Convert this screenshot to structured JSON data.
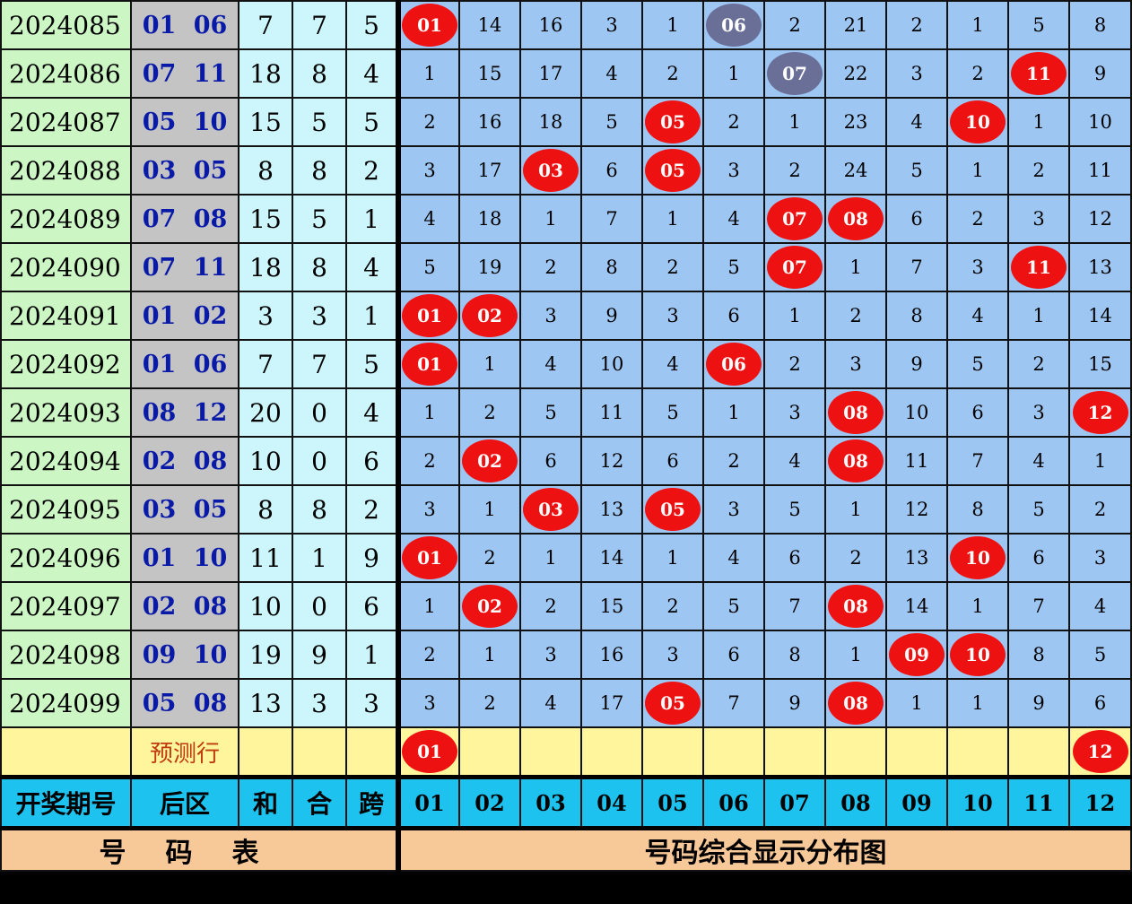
{
  "colors": {
    "hit": "#ee1111",
    "repeat": "#6a6f98",
    "period_bg": "#ccf7c4",
    "back_bg": "#c4c4c4",
    "stat_bg": "#ccf6fb",
    "grid_bg": "#9ec6f2",
    "predict_bg": "#fff59c",
    "header_bg": "#1ec2ee",
    "footer_bg": "#f8c998"
  },
  "rows": [
    {
      "period": "2024085",
      "back": "01 06",
      "sum": "7",
      "he": "7",
      "span": "5",
      "cells": [
        "01",
        "14",
        "16",
        "3",
        "1",
        "06",
        "2",
        "21",
        "2",
        "1",
        "5",
        "8"
      ],
      "hits": [
        0
      ],
      "repeat": [
        5
      ]
    },
    {
      "period": "2024086",
      "back": "07 11",
      "sum": "18",
      "he": "8",
      "span": "4",
      "cells": [
        "1",
        "15",
        "17",
        "4",
        "2",
        "1",
        "07",
        "22",
        "3",
        "2",
        "11",
        "9"
      ],
      "hits": [
        10
      ],
      "repeat": [
        6
      ]
    },
    {
      "period": "2024087",
      "back": "05 10",
      "sum": "15",
      "he": "5",
      "span": "5",
      "cells": [
        "2",
        "16",
        "18",
        "5",
        "05",
        "2",
        "1",
        "23",
        "4",
        "10",
        "1",
        "10"
      ],
      "hits": [
        4,
        9
      ],
      "repeat": []
    },
    {
      "period": "2024088",
      "back": "03 05",
      "sum": "8",
      "he": "8",
      "span": "2",
      "cells": [
        "3",
        "17",
        "03",
        "6",
        "05",
        "3",
        "2",
        "24",
        "5",
        "1",
        "2",
        "11"
      ],
      "hits": [
        2,
        4
      ],
      "repeat": []
    },
    {
      "period": "2024089",
      "back": "07 08",
      "sum": "15",
      "he": "5",
      "span": "1",
      "cells": [
        "4",
        "18",
        "1",
        "7",
        "1",
        "4",
        "07",
        "08",
        "6",
        "2",
        "3",
        "12"
      ],
      "hits": [
        6,
        7
      ],
      "repeat": []
    },
    {
      "period": "2024090",
      "back": "07 11",
      "sum": "18",
      "he": "8",
      "span": "4",
      "cells": [
        "5",
        "19",
        "2",
        "8",
        "2",
        "5",
        "07",
        "1",
        "7",
        "3",
        "11",
        "13"
      ],
      "hits": [
        6,
        10
      ],
      "repeat": []
    },
    {
      "period": "2024091",
      "back": "01 02",
      "sum": "3",
      "he": "3",
      "span": "1",
      "cells": [
        "01",
        "02",
        "3",
        "9",
        "3",
        "6",
        "1",
        "2",
        "8",
        "4",
        "1",
        "14"
      ],
      "hits": [
        0,
        1
      ],
      "repeat": []
    },
    {
      "period": "2024092",
      "back": "01 06",
      "sum": "7",
      "he": "7",
      "span": "5",
      "cells": [
        "01",
        "1",
        "4",
        "10",
        "4",
        "06",
        "2",
        "3",
        "9",
        "5",
        "2",
        "15"
      ],
      "hits": [
        0,
        5
      ],
      "repeat": []
    },
    {
      "period": "2024093",
      "back": "08 12",
      "sum": "20",
      "he": "0",
      "span": "4",
      "cells": [
        "1",
        "2",
        "5",
        "11",
        "5",
        "1",
        "3",
        "08",
        "10",
        "6",
        "3",
        "12"
      ],
      "hits": [
        7,
        11
      ],
      "repeat": []
    },
    {
      "period": "2024094",
      "back": "02 08",
      "sum": "10",
      "he": "0",
      "span": "6",
      "cells": [
        "2",
        "02",
        "6",
        "12",
        "6",
        "2",
        "4",
        "08",
        "11",
        "7",
        "4",
        "1"
      ],
      "hits": [
        1,
        7
      ],
      "repeat": []
    },
    {
      "period": "2024095",
      "back": "03 05",
      "sum": "8",
      "he": "8",
      "span": "2",
      "cells": [
        "3",
        "1",
        "03",
        "13",
        "05",
        "3",
        "5",
        "1",
        "12",
        "8",
        "5",
        "2"
      ],
      "hits": [
        2,
        4
      ],
      "repeat": []
    },
    {
      "period": "2024096",
      "back": "01 10",
      "sum": "11",
      "he": "1",
      "span": "9",
      "cells": [
        "01",
        "2",
        "1",
        "14",
        "1",
        "4",
        "6",
        "2",
        "13",
        "10",
        "6",
        "3"
      ],
      "hits": [
        0,
        9
      ],
      "repeat": []
    },
    {
      "period": "2024097",
      "back": "02 08",
      "sum": "10",
      "he": "0",
      "span": "6",
      "cells": [
        "1",
        "02",
        "2",
        "15",
        "2",
        "5",
        "7",
        "08",
        "14",
        "1",
        "7",
        "4"
      ],
      "hits": [
        1,
        7
      ],
      "repeat": []
    },
    {
      "period": "2024098",
      "back": "09 10",
      "sum": "19",
      "he": "9",
      "span": "1",
      "cells": [
        "2",
        "1",
        "3",
        "16",
        "3",
        "6",
        "8",
        "1",
        "09",
        "10",
        "8",
        "5"
      ],
      "hits": [
        8,
        9
      ],
      "repeat": []
    },
    {
      "period": "2024099",
      "back": "05 08",
      "sum": "13",
      "he": "3",
      "span": "3",
      "cells": [
        "3",
        "2",
        "4",
        "17",
        "05",
        "7",
        "9",
        "08",
        "1",
        "1",
        "9",
        "6"
      ],
      "hits": [
        4,
        7
      ],
      "repeat": []
    }
  ],
  "prediction": {
    "label": "预测行",
    "cells": [
      "01",
      "",
      "",
      "",
      "",
      "",
      "",
      "",
      "",
      "",
      "",
      "12"
    ],
    "hits": [
      0,
      11
    ]
  },
  "header": {
    "period": "开奖期号",
    "back": "后区",
    "sum": "和",
    "he": "合",
    "span": "跨",
    "numbers": [
      "01",
      "02",
      "03",
      "04",
      "05",
      "06",
      "07",
      "08",
      "09",
      "10",
      "11",
      "12"
    ]
  },
  "footer": {
    "left": "号码表",
    "right": "号码综合显示分布图"
  }
}
